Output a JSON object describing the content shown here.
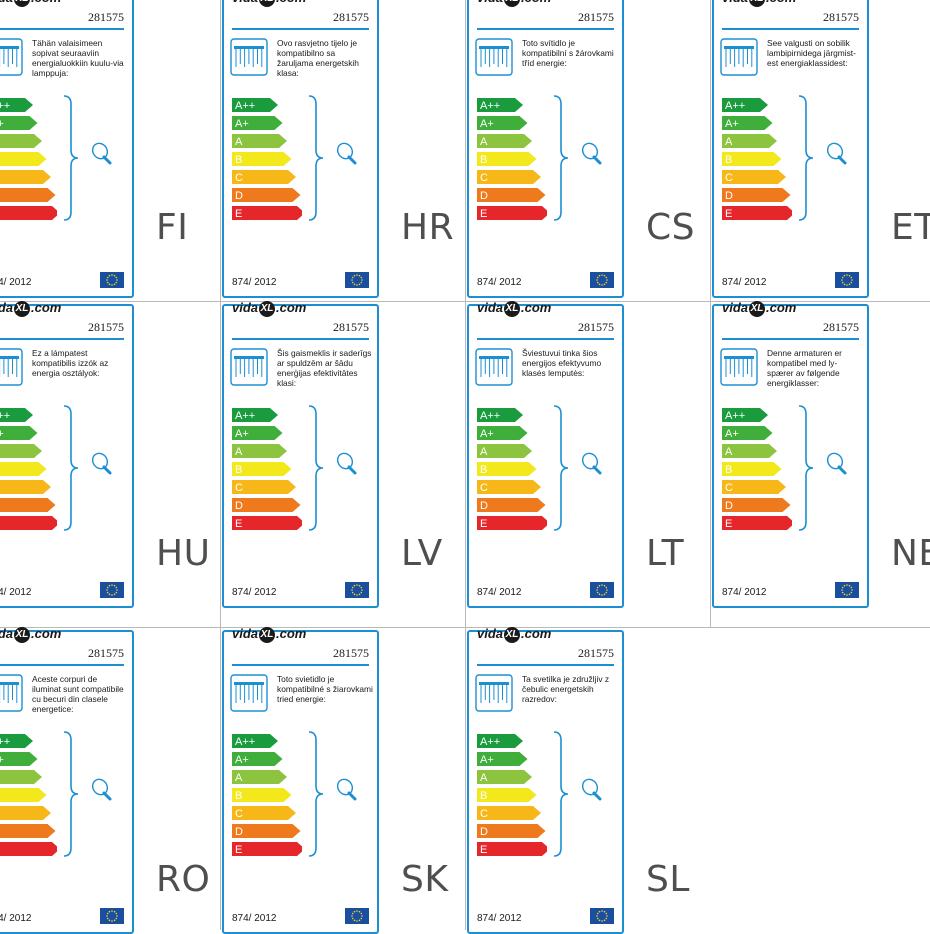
{
  "brand": {
    "prefix": "vida",
    "mark": "XL",
    "suffix": ".com"
  },
  "product_code": "281575",
  "regulation": "874/ 2012",
  "energy_classes": [
    {
      "label": "A++",
      "color": "#1a9b3e"
    },
    {
      "label": "A+",
      "color": "#3fae3a"
    },
    {
      "label": "A",
      "color": "#8cc43f"
    },
    {
      "label": "B",
      "color": "#f2e81c"
    },
    {
      "label": "C",
      "color": "#f7b718"
    },
    {
      "label": "D",
      "color": "#ee7a1d"
    },
    {
      "label": "E",
      "color": "#e5262b"
    }
  ],
  "colors": {
    "frame": "#1c8fd2",
    "eu_flag": "#1a4fa0",
    "grid_line": "#b9b9b9"
  },
  "icons": {
    "lamp": "ceiling-lamp-icon",
    "bulb": "light-bulb-icon",
    "flag": "eu-flag-icon"
  },
  "panels": [
    {
      "country": "FI",
      "text": "Tähän valaisimeen sopivat seuraaviin energialuokkiin kuulu-via lamppuja:"
    },
    {
      "country": "HR",
      "text": "Ovo rasvjetno tijelo je kompatibilno sa žaruljama energetskih klasa:"
    },
    {
      "country": "CS",
      "text": "Toto svítidlo je kompatibilní s žárovkami tříd energie:"
    },
    {
      "country": "ET",
      "text": "See valgusti on sobilik lambipirnidega järgmist-est energiaklassidest:"
    },
    {
      "country": "HU",
      "text": "Ez a lámpatest kompatibilis izzók az energia osztályok:"
    },
    {
      "country": "LV",
      "text": "Šis gaismeklis ir saderīgs ar spuldzēm ar šādu enerģijas efektivitātes klasi:"
    },
    {
      "country": "LT",
      "text": "Šviestuvui tinka šios energijos efektyvumo klasės lemputės:"
    },
    {
      "country": "NE",
      "text": "Denne armaturen er kompatibel med ly-spærer av følgende energiklasser:"
    },
    {
      "country": "RO",
      "text": "Aceste corpuri de iluminat sunt compatibile cu becuri din clasele energetice:"
    },
    {
      "country": "SK",
      "text": "Toto svietidlo je kompatibilné s žiarovkami tried energie:"
    },
    {
      "country": "SL",
      "text": "Ta svetilka je združljiv z čebulic energetskih razredov:"
    }
  ]
}
